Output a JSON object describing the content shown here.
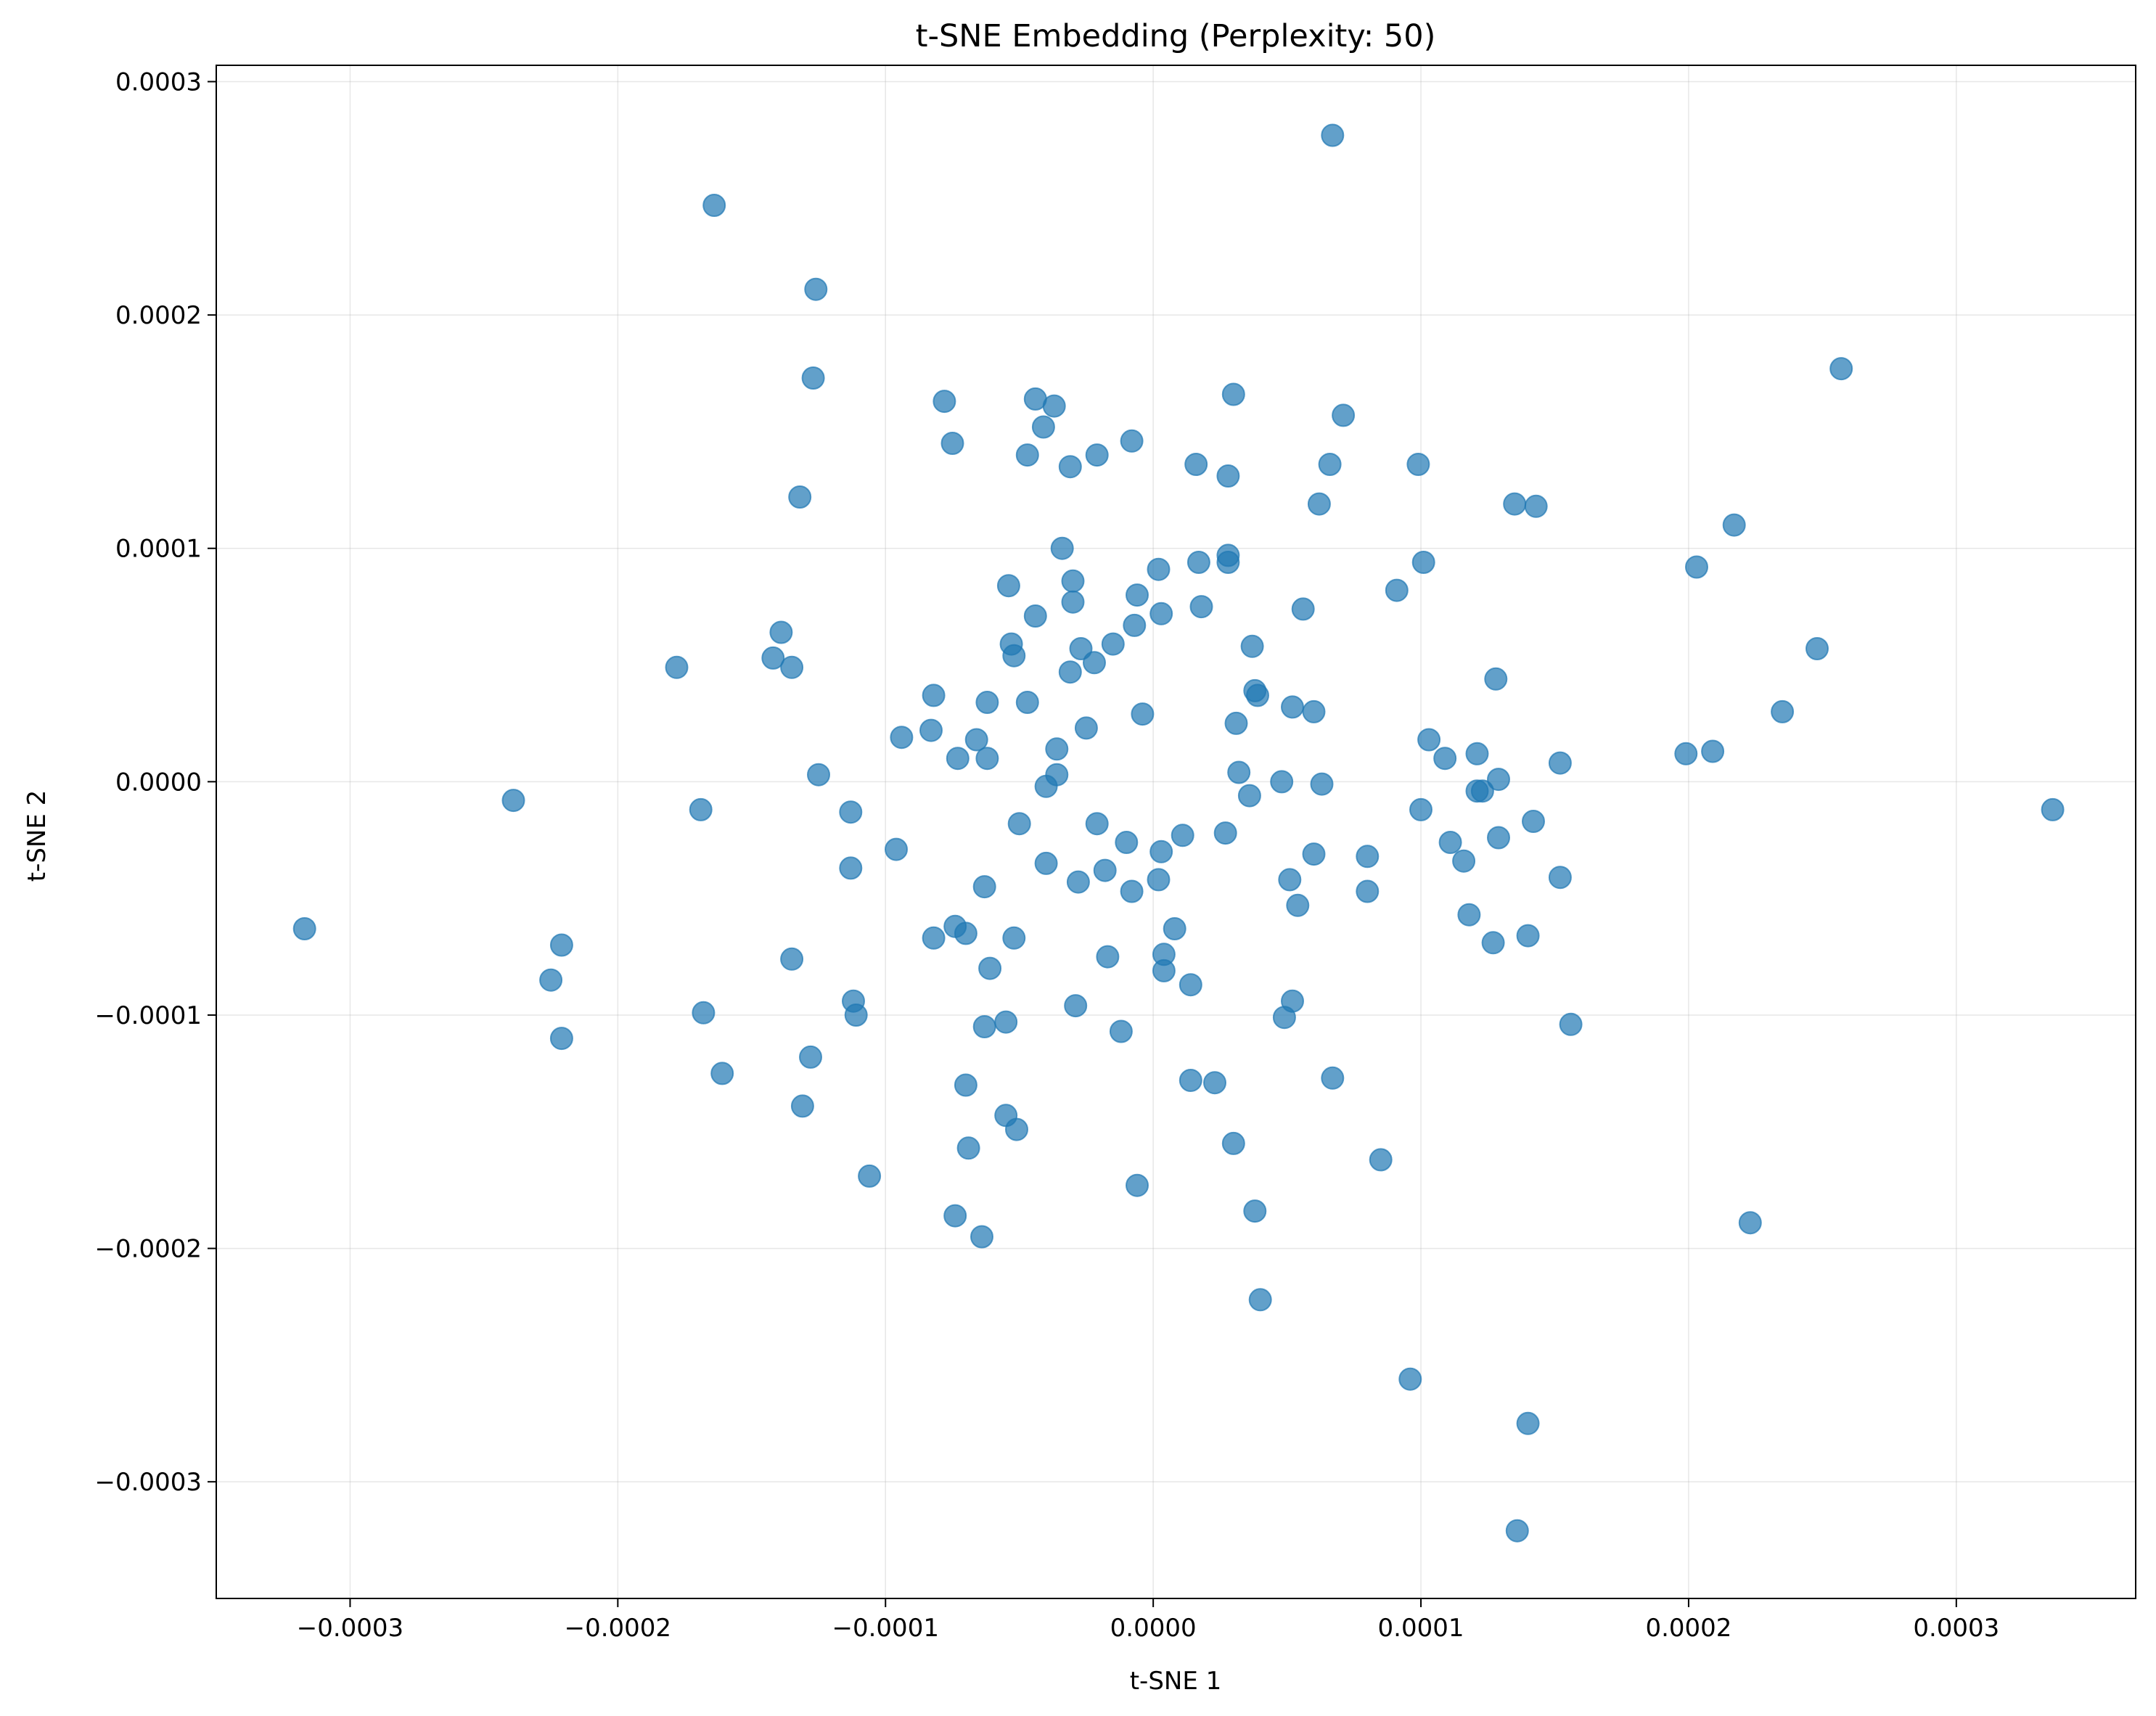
{
  "chart_data": {
    "type": "scatter",
    "title": "t-SNE Embedding (Perplexity: 50)",
    "xlabel": "t-SNE 1",
    "ylabel": "t-SNE 2",
    "xlim": [
      -0.00035,
      0.000367
    ],
    "ylim": [
      -0.00035,
      0.000307
    ],
    "x_ticks": [
      -0.0003,
      -0.0002,
      -0.0001,
      0.0,
      0.0001,
      0.0002,
      0.0003
    ],
    "x_tick_labels": [
      "−0.0003",
      "−0.0002",
      "−0.0001",
      "0.0000",
      "0.0001",
      "0.0002",
      "0.0003"
    ],
    "y_ticks": [
      -0.0003,
      -0.0002,
      -0.0001,
      0.0,
      0.0001,
      0.0002,
      0.0003
    ],
    "y_tick_labels": [
      "−0.0003",
      "−0.0002",
      "−0.0001",
      "0.0000",
      "0.0001",
      "0.0002",
      "0.0003"
    ],
    "grid": true,
    "color": "#1f77b4",
    "point_alpha": 0.7,
    "points": [
      [
        6.7e-05,
        0.000277
      ],
      [
        -0.000164,
        0.000247
      ],
      [
        -0.000126,
        0.000211
      ],
      [
        0.000257,
        0.000177
      ],
      [
        -0.000127,
        0.000173
      ],
      [
        3e-05,
        0.000166
      ],
      [
        -7.8e-05,
        0.000163
      ],
      [
        -4.4e-05,
        0.000164
      ],
      [
        -3.7e-05,
        0.000161
      ],
      [
        7.1e-05,
        0.000157
      ],
      [
        -4.1e-05,
        0.000152
      ],
      [
        -8e-06,
        0.000146
      ],
      [
        -7.5e-05,
        0.000145
      ],
      [
        -4.7e-05,
        0.00014
      ],
      [
        -2.1e-05,
        0.00014
      ],
      [
        1.6e-05,
        0.000136
      ],
      [
        6.6e-05,
        0.000136
      ],
      [
        9.9e-05,
        0.000136
      ],
      [
        -3.1e-05,
        0.000135
      ],
      [
        2.8e-05,
        0.000131
      ],
      [
        -0.000132,
        0.000122
      ],
      [
        6.2e-05,
        0.000119
      ],
      [
        0.000135,
        0.000119
      ],
      [
        0.000143,
        0.000118
      ],
      [
        0.000217,
        0.00011
      ],
      [
        -3.4e-05,
        0.0001
      ],
      [
        2.8e-05,
        9.7e-05
      ],
      [
        2.8e-05,
        9.4e-05
      ],
      [
        1.7e-05,
        9.4e-05
      ],
      [
        0.000101,
        9.4e-05
      ],
      [
        2e-06,
        9.1e-05
      ],
      [
        0.000203,
        9.2e-05
      ],
      [
        -3e-05,
        8.6e-05
      ],
      [
        -5.4e-05,
        8.4e-05
      ],
      [
        9.1e-05,
        8.2e-05
      ],
      [
        -6e-06,
        8e-05
      ],
      [
        -3e-05,
        7.7e-05
      ],
      [
        1.8e-05,
        7.5e-05
      ],
      [
        5.6e-05,
        7.4e-05
      ],
      [
        3e-06,
        7.2e-05
      ],
      [
        -4.4e-05,
        7.1e-05
      ],
      [
        -7e-06,
        6.7e-05
      ],
      [
        -0.000139,
        6.4e-05
      ],
      [
        -5.3e-05,
        5.9e-05
      ],
      [
        -1.5e-05,
        5.9e-05
      ],
      [
        3.7e-05,
        5.8e-05
      ],
      [
        -2.7e-05,
        5.7e-05
      ],
      [
        0.000248,
        5.7e-05
      ],
      [
        -5.2e-05,
        5.4e-05
      ],
      [
        -0.000142,
        5.3e-05
      ],
      [
        -2.2e-05,
        5.1e-05
      ],
      [
        -0.000178,
        4.9e-05
      ],
      [
        -0.000135,
        4.9e-05
      ],
      [
        -3.1e-05,
        4.7e-05
      ],
      [
        0.000128,
        4.4e-05
      ],
      [
        3.8e-05,
        3.9e-05
      ],
      [
        3.9e-05,
        3.7e-05
      ],
      [
        -8.2e-05,
        3.7e-05
      ],
      [
        -6.2e-05,
        3.4e-05
      ],
      [
        -4.7e-05,
        3.4e-05
      ],
      [
        5.2e-05,
        3.2e-05
      ],
      [
        6e-05,
        3e-05
      ],
      [
        -4e-06,
        2.9e-05
      ],
      [
        0.000235,
        3e-05
      ],
      [
        3.1e-05,
        2.5e-05
      ],
      [
        -2.5e-05,
        2.3e-05
      ],
      [
        -8.3e-05,
        2.2e-05
      ],
      [
        -9.4e-05,
        1.9e-05
      ],
      [
        -6.6e-05,
        1.8e-05
      ],
      [
        0.000103,
        1.8e-05
      ],
      [
        -3.6e-05,
        1.4e-05
      ],
      [
        0.000209,
        1.3e-05
      ],
      [
        0.000199,
        1.2e-05
      ],
      [
        0.000121,
        1.2e-05
      ],
      [
        -7.3e-05,
        1e-05
      ],
      [
        -6.2e-05,
        1e-05
      ],
      [
        0.000109,
        1e-05
      ],
      [
        0.000152,
        8e-06
      ],
      [
        3.2e-05,
        4e-06
      ],
      [
        -0.000125,
        3e-06
      ],
      [
        -3.6e-05,
        3e-06
      ],
      [
        0.000129,
        1e-06
      ],
      [
        4.8e-05,
        0.0
      ],
      [
        6.3e-05,
        -1e-06
      ],
      [
        -4e-05,
        -2e-06
      ],
      [
        0.000121,
        -4e-06
      ],
      [
        0.000123,
        -4e-06
      ],
      [
        3.6e-05,
        -6e-06
      ],
      [
        -0.000239,
        -8e-06
      ],
      [
        0.0001,
        -1.2e-05
      ],
      [
        -0.000169,
        -1.2e-05
      ],
      [
        0.000336,
        -1.2e-05
      ],
      [
        -0.000113,
        -1.3e-05
      ],
      [
        0.000142,
        -1.7e-05
      ],
      [
        -5e-05,
        -1.8e-05
      ],
      [
        -2.1e-05,
        -1.8e-05
      ],
      [
        2.7e-05,
        -2.2e-05
      ],
      [
        1.1e-05,
        -2.3e-05
      ],
      [
        0.000129,
        -2.4e-05
      ],
      [
        -1e-05,
        -2.6e-05
      ],
      [
        0.000111,
        -2.6e-05
      ],
      [
        -9.6e-05,
        -2.9e-05
      ],
      [
        3e-06,
        -3e-05
      ],
      [
        6e-05,
        -3.1e-05
      ],
      [
        8e-05,
        -3.2e-05
      ],
      [
        0.000116,
        -3.4e-05
      ],
      [
        -4e-05,
        -3.5e-05
      ],
      [
        -0.000113,
        -3.7e-05
      ],
      [
        -1.8e-05,
        -3.8e-05
      ],
      [
        2e-06,
        -4.2e-05
      ],
      [
        0.000152,
        -4.1e-05
      ],
      [
        5.1e-05,
        -4.2e-05
      ],
      [
        -2.8e-05,
        -4.3e-05
      ],
      [
        -6.3e-05,
        -4.5e-05
      ],
      [
        -8e-06,
        -4.7e-05
      ],
      [
        8e-05,
        -4.7e-05
      ],
      [
        5.4e-05,
        -5.3e-05
      ],
      [
        0.000118,
        -5.7e-05
      ],
      [
        -7.4e-05,
        -6.2e-05
      ],
      [
        8e-06,
        -6.3e-05
      ],
      [
        -7e-05,
        -6.5e-05
      ],
      [
        0.00014,
        -6.6e-05
      ],
      [
        -8.2e-05,
        -6.7e-05
      ],
      [
        -5.2e-05,
        -6.7e-05
      ],
      [
        0.000127,
        -6.9e-05
      ],
      [
        -0.000221,
        -7e-05
      ],
      [
        -1.7e-05,
        -7.5e-05
      ],
      [
        4e-06,
        -7.4e-05
      ],
      [
        -0.000135,
        -7.6e-05
      ],
      [
        -6.1e-05,
        -8e-05
      ],
      [
        4e-06,
        -8.1e-05
      ],
      [
        1.4e-05,
        -8.7e-05
      ],
      [
        -0.000225,
        -8.5e-05
      ],
      [
        -0.000112,
        -9.4e-05
      ],
      [
        5.2e-05,
        -9.4e-05
      ],
      [
        -2.9e-05,
        -9.6e-05
      ],
      [
        -0.000168,
        -9.9e-05
      ],
      [
        -0.000111,
        -0.0001
      ],
      [
        4.9e-05,
        -0.000101
      ],
      [
        0.000156,
        -0.000104
      ],
      [
        -5.5e-05,
        -0.000103
      ],
      [
        -6.3e-05,
        -0.000105
      ],
      [
        -1.2e-05,
        -0.000107
      ],
      [
        -0.000221,
        -0.00011
      ],
      [
        -0.000128,
        -0.000118
      ],
      [
        -0.000161,
        -0.000125
      ],
      [
        6.7e-05,
        -0.000127
      ],
      [
        1.4e-05,
        -0.000128
      ],
      [
        2.3e-05,
        -0.000129
      ],
      [
        -7e-05,
        -0.00013
      ],
      [
        -0.000131,
        -0.000139
      ],
      [
        -5.5e-05,
        -0.000143
      ],
      [
        -5.1e-05,
        -0.000149
      ],
      [
        3e-05,
        -0.000155
      ],
      [
        -6.9e-05,
        -0.000157
      ],
      [
        8.5e-05,
        -0.000162
      ],
      [
        -0.000106,
        -0.000169
      ],
      [
        -6e-06,
        -0.000173
      ],
      [
        3.8e-05,
        -0.000184
      ],
      [
        -7.4e-05,
        -0.000186
      ],
      [
        0.000223,
        -0.000189
      ],
      [
        -6.4e-05,
        -0.000195
      ],
      [
        4e-05,
        -0.000222
      ],
      [
        9.6e-05,
        -0.000256
      ],
      [
        0.00014,
        -0.000275
      ],
      [
        0.000136,
        -0.000321
      ],
      [
        -0.000317,
        -6.3e-05
      ]
    ]
  }
}
